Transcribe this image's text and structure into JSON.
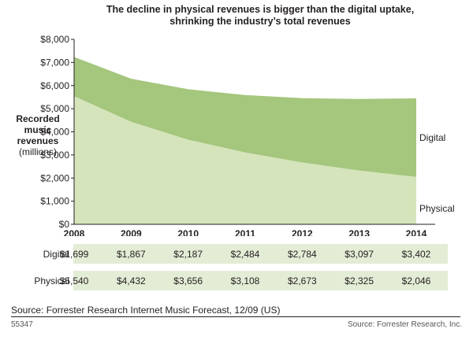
{
  "title_line1": "The decline in physical revenues is bigger than the digital uptake,",
  "title_line2": "shrinking the industry’s total revenues",
  "ylabel_bold": "Recorded music revenues",
  "ylabel_units": "(millions)",
  "source_note": "Source: Forrester Research Internet Music Forecast, 12/09 (US)",
  "figure_id": "55347",
  "footer_source": "Source: Forrester Research, Inc.",
  "colors": {
    "physical": "#d5e4bb",
    "digital": "#a4c67d",
    "table_band": "#e3ecd5"
  },
  "chart_data": {
    "type": "area",
    "stacked": true,
    "categories": [
      "2008",
      "2009",
      "2010",
      "2011",
      "2012",
      "2013",
      "2014"
    ],
    "series": [
      {
        "name": "Physical",
        "values": [
          5540,
          4432,
          3656,
          3108,
          2673,
          2325,
          2046
        ]
      },
      {
        "name": "Digital",
        "values": [
          1699,
          1867,
          2187,
          2484,
          2784,
          3097,
          3402
        ]
      }
    ],
    "ylim": [
      0,
      8000
    ],
    "y_ticks": [
      "$0",
      "$1,000",
      "$2,000",
      "$3,000",
      "$4,000",
      "$5,000",
      "$6,000",
      "$7,000",
      "$8,000"
    ],
    "table": {
      "rows": [
        {
          "label": "Digital",
          "cells": [
            "$1,699",
            "$1,867",
            "$2,187",
            "$2,484",
            "$2,784",
            "$3,097",
            "$3,402"
          ]
        },
        {
          "label": "Physical",
          "cells": [
            "$5,540",
            "$4,432",
            "$3,656",
            "$3,108",
            "$2,673",
            "$2,325",
            "$2,046"
          ]
        }
      ]
    }
  }
}
